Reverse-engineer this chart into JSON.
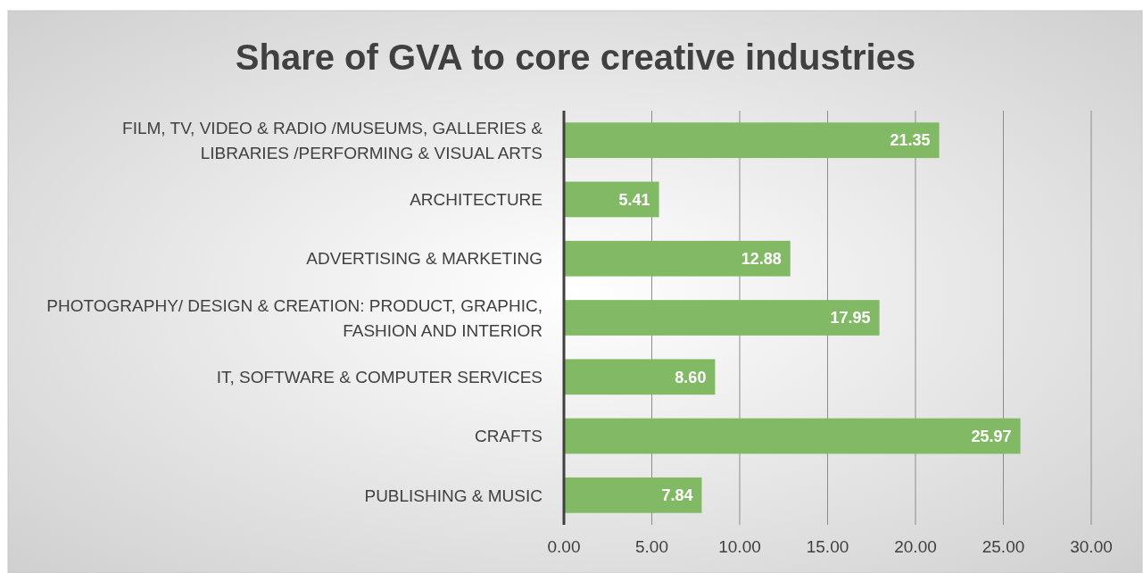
{
  "chart_data": {
    "type": "bar",
    "orientation": "horizontal",
    "title": "Share of GVA to core creative industries",
    "categories": [
      "FILM, TV, VIDEO & RADIO /MUSEUMS, GALLERIES & LIBRARIES /PERFORMING & VISUAL ARTS",
      "ARCHITECTURE",
      "ADVERTISING & MARKETING",
      "PHOTOGRAPHY/ DESIGN & CREATION: PRODUCT, GRAPHIC, FASHION AND INTERIOR",
      "IT, SOFTWARE & COMPUTER SERVICES",
      "CRAFTS",
      "PUBLISHING & MUSIC"
    ],
    "values": [
      21.35,
      5.41,
      12.88,
      17.95,
      8.6,
      25.97,
      7.84
    ],
    "value_labels": [
      "21.35",
      "5.41",
      "12.88",
      "17.95",
      "8.60",
      "25.97",
      "7.84"
    ],
    "color": "#82b965",
    "xlim": [
      0,
      30
    ],
    "xticks": [
      {
        "value": 0,
        "label": "0.00"
      },
      {
        "value": 5,
        "label": "5.00"
      },
      {
        "value": 10,
        "label": "10.00"
      },
      {
        "value": 15,
        "label": "15.00"
      },
      {
        "value": 20,
        "label": "20.00"
      },
      {
        "value": 25,
        "label": "25.00"
      },
      {
        "value": 30,
        "label": "30.00"
      }
    ],
    "grid": "x"
  }
}
